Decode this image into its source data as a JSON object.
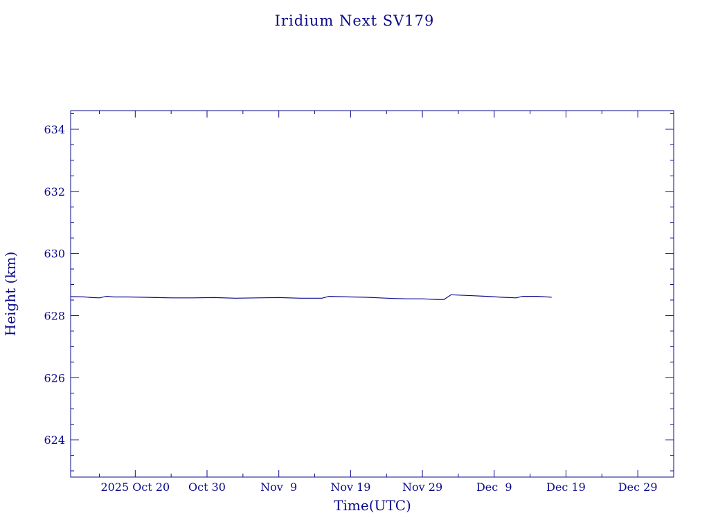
{
  "chart_data": {
    "type": "line",
    "title": "Iridium Next SV179",
    "xlabel": "Time(UTC)",
    "ylabel": "Height (km)",
    "xlim": [
      "2025-10-11",
      "2026-01-03"
    ],
    "ylim": [
      622.8,
      634.6
    ],
    "x_ticks": [
      {
        "date": "2025-10-20",
        "label": "2025 Oct 20"
      },
      {
        "date": "2025-10-30",
        "label": "Oct 30"
      },
      {
        "date": "2025-11-09",
        "label": "Nov  9"
      },
      {
        "date": "2025-11-19",
        "label": "Nov 19"
      },
      {
        "date": "2025-11-29",
        "label": "Nov 29"
      },
      {
        "date": "2025-12-09",
        "label": "Dec  9"
      },
      {
        "date": "2025-12-19",
        "label": "Dec 19"
      },
      {
        "date": "2025-12-29",
        "label": "Dec 29"
      }
    ],
    "x_minor_every_days": 5,
    "y_ticks": [
      624,
      626,
      628,
      630,
      632,
      634
    ],
    "y_minor_step": 0.5,
    "grid": false,
    "color": "#0a0a8c",
    "series": [
      {
        "points": [
          [
            "2025-10-11",
            628.61
          ],
          [
            "2025-10-13",
            628.6
          ],
          [
            "2025-10-14",
            628.58
          ],
          [
            "2025-10-15",
            628.57
          ],
          [
            "2025-10-16",
            628.62
          ],
          [
            "2025-10-17",
            628.6
          ],
          [
            "2025-10-19",
            628.6
          ],
          [
            "2025-10-21",
            628.59
          ],
          [
            "2025-10-23",
            628.58
          ],
          [
            "2025-10-25",
            628.57
          ],
          [
            "2025-10-28",
            628.57
          ],
          [
            "2025-10-31",
            628.58
          ],
          [
            "2025-11-03",
            628.56
          ],
          [
            "2025-11-06",
            628.57
          ],
          [
            "2025-11-09",
            628.58
          ],
          [
            "2025-11-12",
            628.56
          ],
          [
            "2025-11-15",
            628.56
          ],
          [
            "2025-11-16",
            628.62
          ],
          [
            "2025-11-17",
            628.61
          ],
          [
            "2025-11-19",
            628.6
          ],
          [
            "2025-11-21",
            628.59
          ],
          [
            "2025-11-23",
            628.57
          ],
          [
            "2025-11-25",
            628.55
          ],
          [
            "2025-11-27",
            628.54
          ],
          [
            "2025-11-29",
            628.54
          ],
          [
            "2025-12-01",
            628.52
          ],
          [
            "2025-12-02",
            628.52
          ],
          [
            "2025-12-03",
            628.67
          ],
          [
            "2025-12-04",
            628.66
          ],
          [
            "2025-12-06",
            628.64
          ],
          [
            "2025-12-08",
            628.62
          ],
          [
            "2025-12-10",
            628.59
          ],
          [
            "2025-12-12",
            628.57
          ],
          [
            "2025-12-13",
            628.62
          ],
          [
            "2025-12-15",
            628.62
          ],
          [
            "2025-12-17",
            628.59
          ]
        ]
      }
    ]
  }
}
